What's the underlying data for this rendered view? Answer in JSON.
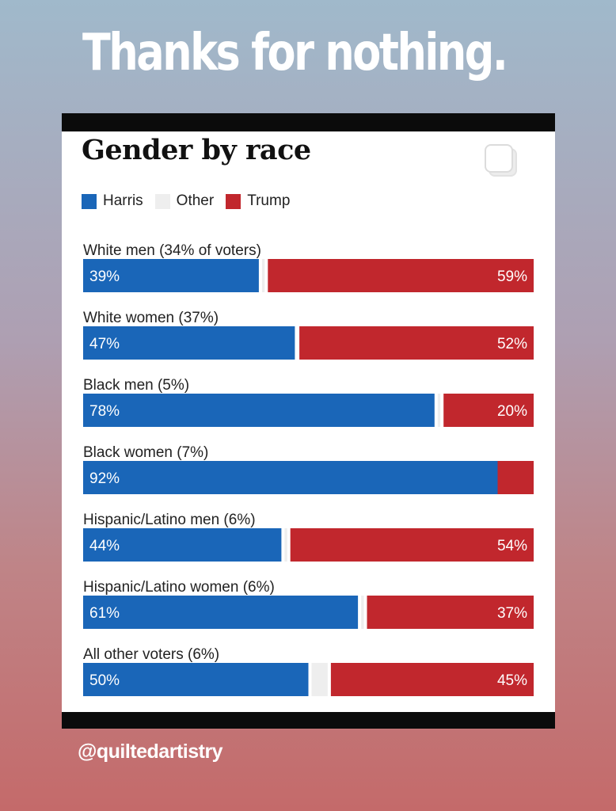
{
  "headline": "Thanks for nothing.",
  "handle": "@quiltedartistry",
  "icons": {
    "copy": "copy-icon"
  },
  "colors": {
    "harris": "#1a66b8",
    "other": "#eeeeee",
    "trump": "#c1272d"
  },
  "chart_data": {
    "type": "bar",
    "orientation": "horizontal-stacked-100",
    "title": "Gender by race",
    "legend": [
      "Harris",
      "Other",
      "Trump"
    ],
    "categories": [
      "White men (34% of voters)",
      "White women (37%)",
      "Black men (5%)",
      "Black women (7%)",
      "Hispanic/Latino men (6%)",
      "Hispanic/Latino women (6%)",
      "All other voters (6%)"
    ],
    "series": [
      {
        "name": "Harris",
        "values": [
          39,
          47,
          78,
          92,
          44,
          61,
          50
        ]
      },
      {
        "name": "Other",
        "values": [
          2,
          1,
          2,
          0,
          2,
          2,
          5
        ]
      },
      {
        "name": "Trump",
        "values": [
          59,
          52,
          20,
          8,
          54,
          37,
          45
        ]
      }
    ],
    "labels": {
      "Harris": [
        "39%",
        "47%",
        "78%",
        "92%",
        "44%",
        "61%",
        "50%"
      ],
      "Trump": [
        "59%",
        "52%",
        "20%",
        "",
        "54%",
        "37%",
        "45%"
      ]
    },
    "xlim": [
      0,
      100
    ]
  }
}
